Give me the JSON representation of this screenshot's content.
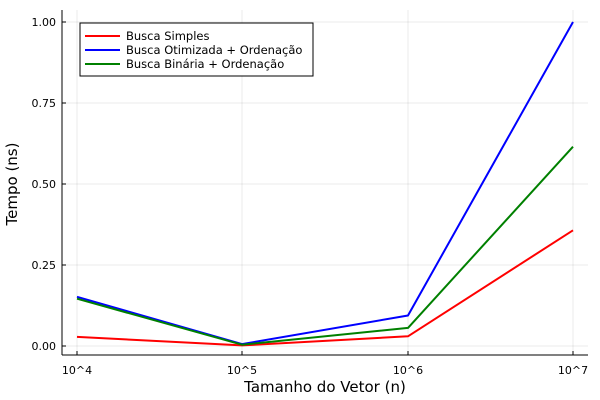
{
  "chart_data": {
    "type": "line",
    "categories": [
      "10^4",
      "10^5",
      "10^6",
      "10^7"
    ],
    "xlabel": "Tamanho do Vetor (n)",
    "ylabel": "Tempo (ns)",
    "ylim": [
      0,
      1.0
    ],
    "yticks": [
      "0.00",
      "0.25",
      "0.50",
      "0.75",
      "1.00"
    ],
    "ytick_values": [
      0,
      0.25,
      0.5,
      0.75,
      1.0
    ],
    "grid": true,
    "legend_position": "top-left",
    "series": [
      {
        "name": "Busca Simples",
        "color": "#ff0000",
        "values": [
          0.028,
          0.002,
          0.03,
          0.357
        ]
      },
      {
        "name": "Busca Otimizada + Ordenação",
        "color": "#0000ff",
        "values": [
          0.152,
          0.006,
          0.094,
          1.0
        ]
      },
      {
        "name": "Busca Binária + Ordenação",
        "color": "#008000",
        "values": [
          0.146,
          0.004,
          0.056,
          0.615
        ]
      }
    ]
  }
}
